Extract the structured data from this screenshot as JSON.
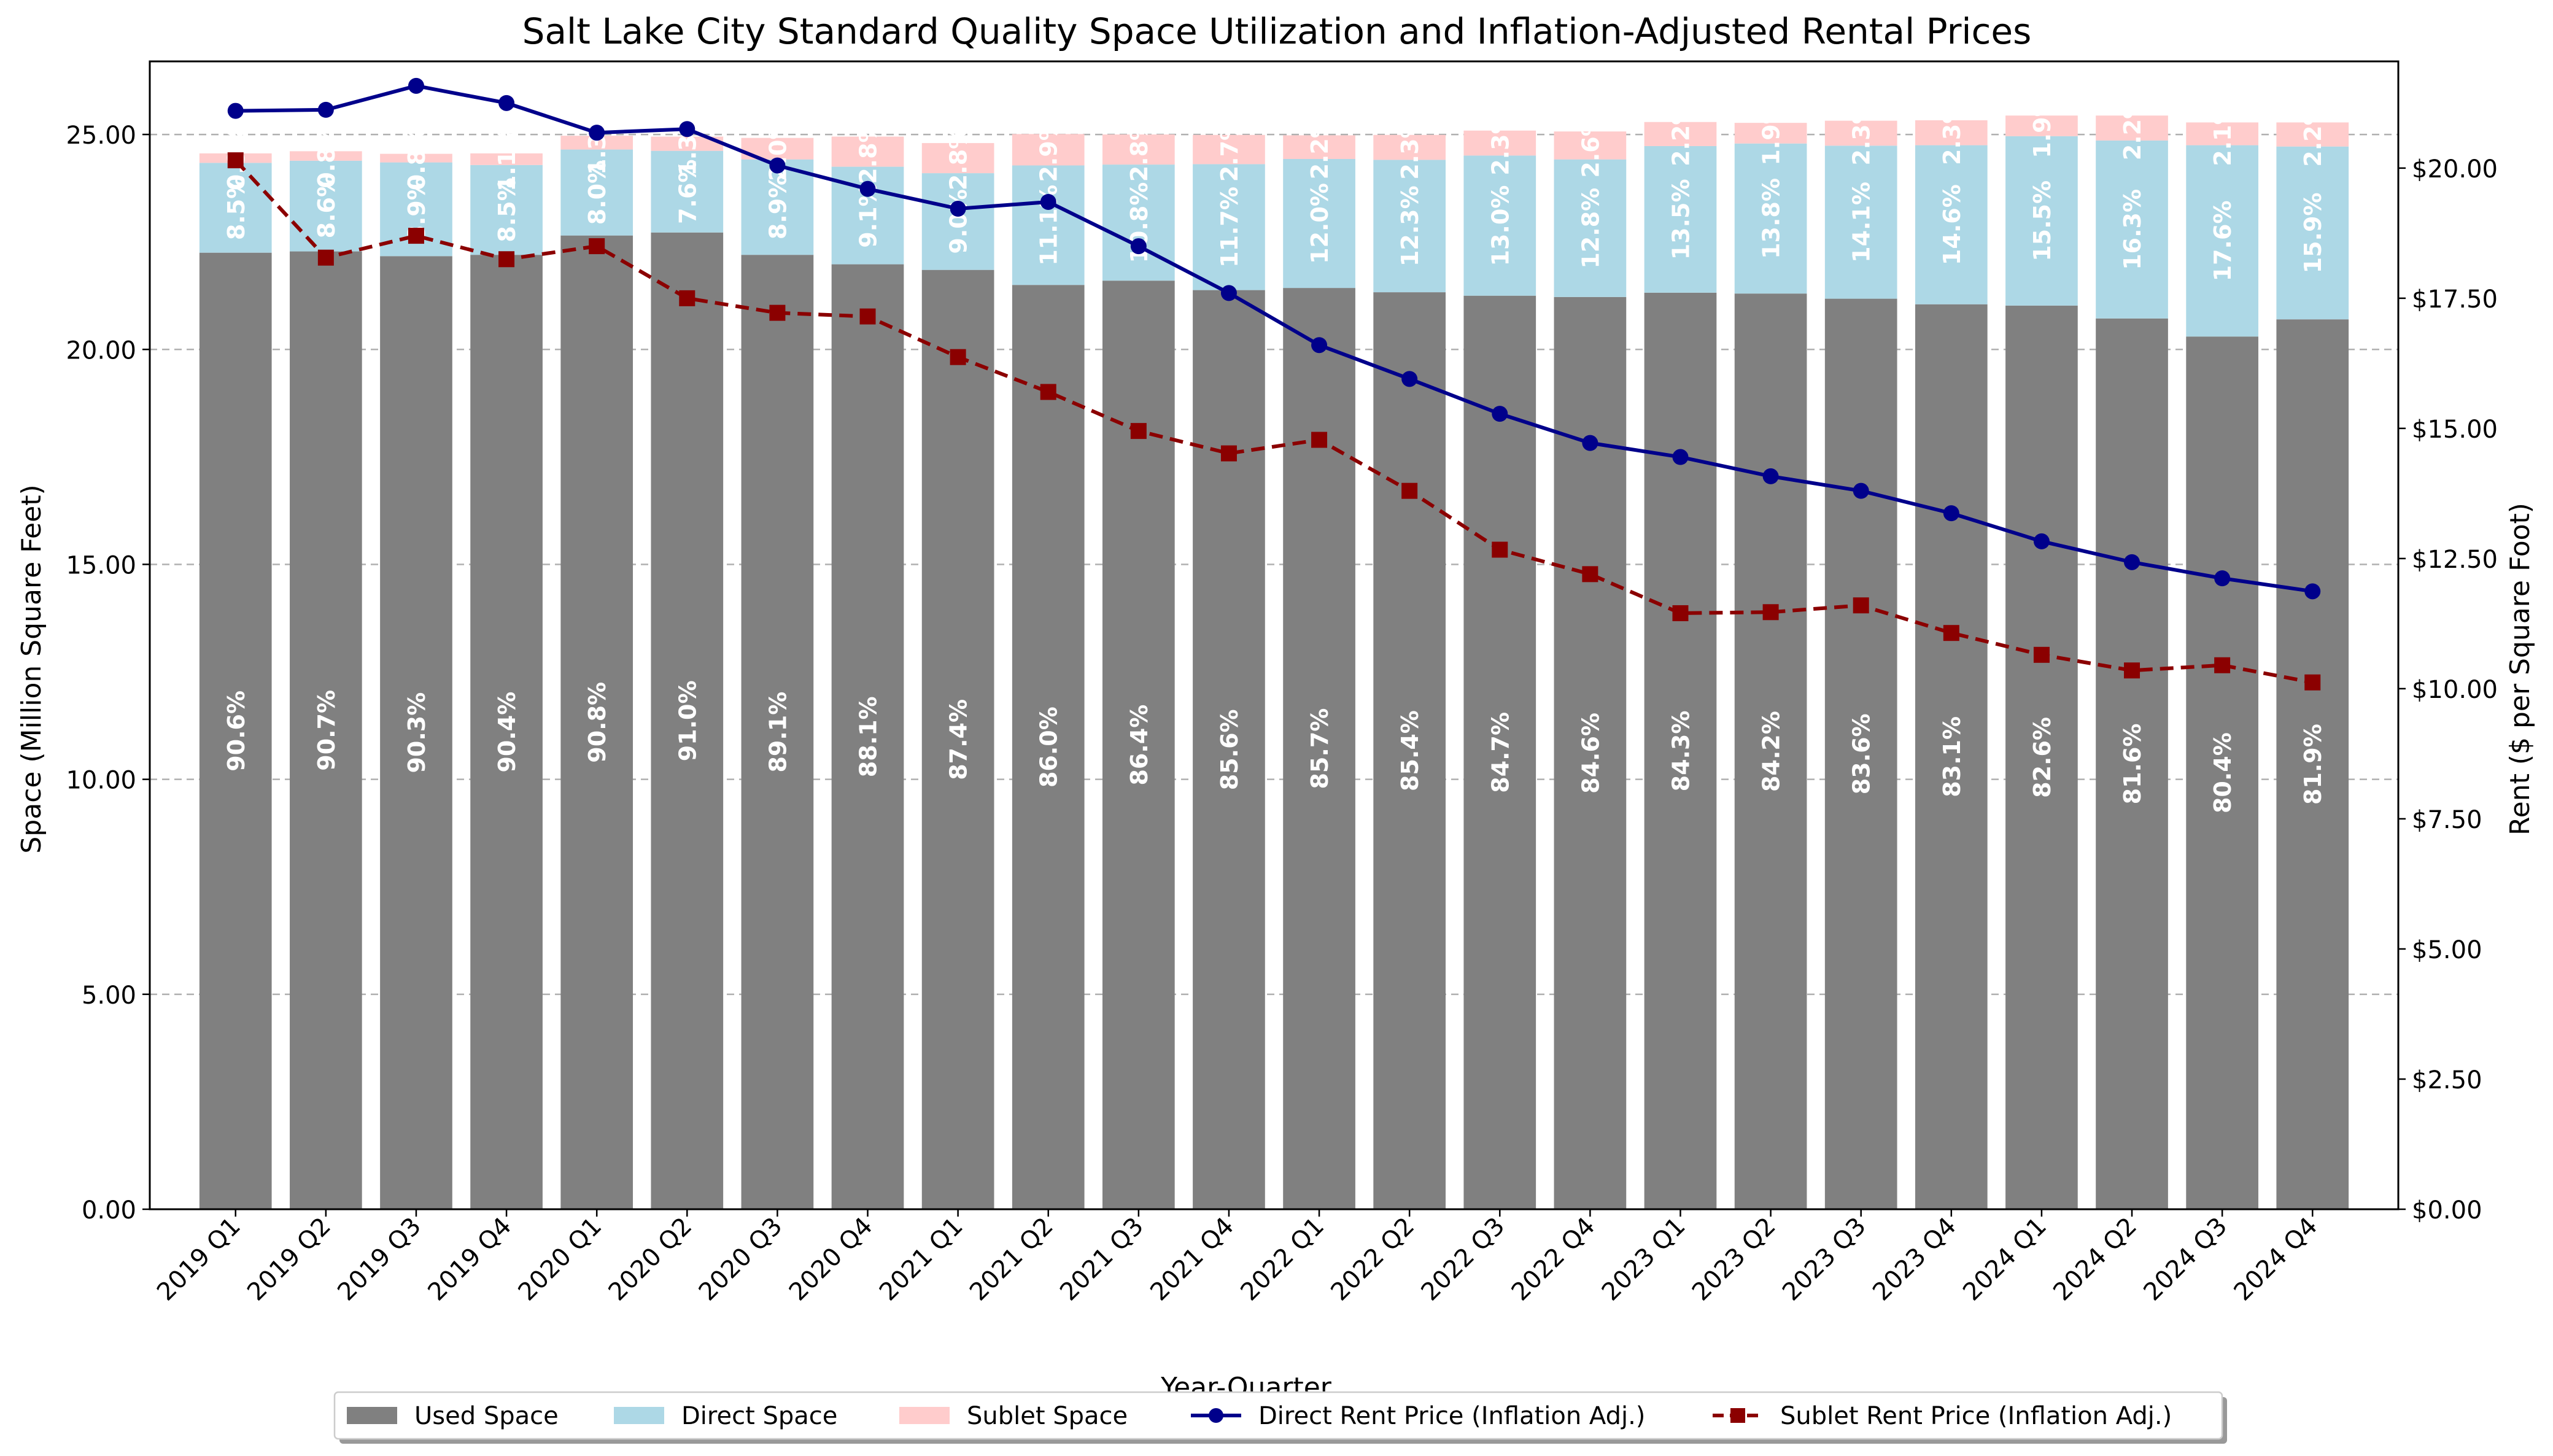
{
  "chart_data": {
    "type": "bar",
    "title": "Salt Lake City Standard Quality Space Utilization and Inflation-Adjusted Rental Prices",
    "xlabel": "Year-Quarter",
    "ylabel": "Space (Million Square Feet)",
    "y2label": "Rent ($ per Square Foot)",
    "ylim": [
      0,
      26.7
    ],
    "y2lim": [
      0,
      22.05
    ],
    "yticks": [
      "0.00",
      "5.00",
      "10.00",
      "15.00",
      "20.00",
      "25.00"
    ],
    "y2ticks": [
      "$0.00",
      "$2.50",
      "$5.00",
      "$7.50",
      "$10.00",
      "$12.50",
      "$15.00",
      "$17.50",
      "$20.00"
    ],
    "grid": true,
    "legend_placement": "bottom-center",
    "categories": [
      "2019 Q1",
      "2019 Q2",
      "2019 Q3",
      "2019 Q4",
      "2020 Q1",
      "2020 Q2",
      "2020 Q3",
      "2020 Q4",
      "2021 Q1",
      "2021 Q2",
      "2021 Q3",
      "2021 Q4",
      "2022 Q1",
      "2022 Q2",
      "2022 Q3",
      "2022 Q4",
      "2023 Q1",
      "2023 Q2",
      "2023 Q3",
      "2023 Q4",
      "2024 Q1",
      "2024 Q2",
      "2024 Q3",
      "2024 Q4"
    ],
    "series": [
      {
        "name": "Used Space",
        "kind": "stacked-bar",
        "color": "#808080",
        "values": [
          22.25,
          22.28,
          22.17,
          22.2,
          22.65,
          22.72,
          22.2,
          21.98,
          21.85,
          21.5,
          21.6,
          21.38,
          21.43,
          21.33,
          21.25,
          21.22,
          21.32,
          21.3,
          21.18,
          21.05,
          21.02,
          20.72,
          20.3,
          20.7
        ],
        "labels": [
          "90.6%",
          "90.7%",
          "90.3%",
          "90.4%",
          "90.8%",
          "91.0%",
          "89.1%",
          "88.1%",
          "87.4%",
          "86.0%",
          "86.4%",
          "85.6%",
          "85.7%",
          "85.4%",
          "84.7%",
          "84.6%",
          "84.3%",
          "84.2%",
          "83.6%",
          "83.1%",
          "82.6%",
          "81.6%",
          "80.4%",
          "81.9%"
        ]
      },
      {
        "name": "Direct Space",
        "kind": "stacked-bar",
        "color": "#add8e6",
        "values": [
          2.09,
          2.11,
          2.18,
          2.09,
          2.0,
          1.9,
          2.22,
          2.27,
          2.25,
          2.78,
          2.7,
          2.93,
          3.0,
          3.08,
          3.26,
          3.2,
          3.41,
          3.49,
          3.56,
          3.7,
          3.94,
          4.14,
          4.45,
          4.02
        ],
        "labels": [
          "8.5%",
          "8.6%",
          "8.9%",
          "8.5%",
          "8.0%",
          "7.6%",
          "8.9%",
          "9.1%",
          "9.0%",
          "11.1%",
          "10.8%",
          "11.7%",
          "12.0%",
          "12.3%",
          "13.0%",
          "12.8%",
          "13.5%",
          "13.8%",
          "14.1%",
          "14.6%",
          "15.5%",
          "16.3%",
          "17.6%",
          "15.9%"
        ]
      },
      {
        "name": "Sublet Space",
        "kind": "stacked-bar",
        "color": "#ffcccc",
        "values": [
          0.22,
          0.22,
          0.2,
          0.27,
          0.32,
          0.33,
          0.5,
          0.7,
          0.7,
          0.73,
          0.7,
          0.68,
          0.55,
          0.58,
          0.58,
          0.65,
          0.56,
          0.48,
          0.58,
          0.58,
          0.48,
          0.58,
          0.53,
          0.56
        ],
        "labels": [
          "0.9%",
          "0.8%",
          "0.8%",
          "1.1%",
          "1.3%",
          "1.3%",
          "2.0%",
          "2.8%",
          "2.8%",
          "2.9%",
          "2.8%",
          "2.7%",
          "2.2%",
          "2.3%",
          "2.3%",
          "2.6%",
          "2.2%",
          "1.9%",
          "2.3%",
          "2.3%",
          "1.9%",
          "2.2%",
          "2.1%",
          "2.2%"
        ]
      },
      {
        "name": "Direct Rent Price (Inflation Adj.)",
        "kind": "line",
        "axis": "right",
        "color": "#00008b",
        "marker": "circle",
        "dash": "solid",
        "values": [
          21.1,
          21.12,
          21.58,
          21.25,
          20.68,
          20.75,
          20.05,
          19.6,
          19.22,
          19.35,
          18.5,
          17.6,
          16.6,
          15.95,
          15.28,
          14.72,
          14.45,
          14.08,
          13.8,
          13.37,
          12.83,
          12.43,
          12.12,
          11.87
        ]
      },
      {
        "name": "Sublet Rent Price (Inflation Adj.)",
        "kind": "line",
        "axis": "right",
        "color": "#8b0000",
        "marker": "square",
        "dash": "dashed",
        "values": [
          20.15,
          18.28,
          18.7,
          18.25,
          18.5,
          17.5,
          17.22,
          17.15,
          16.37,
          15.7,
          14.95,
          14.52,
          14.78,
          13.8,
          12.67,
          12.2,
          11.45,
          11.47,
          11.6,
          11.07,
          10.65,
          10.35,
          10.45,
          10.12
        ]
      }
    ]
  }
}
